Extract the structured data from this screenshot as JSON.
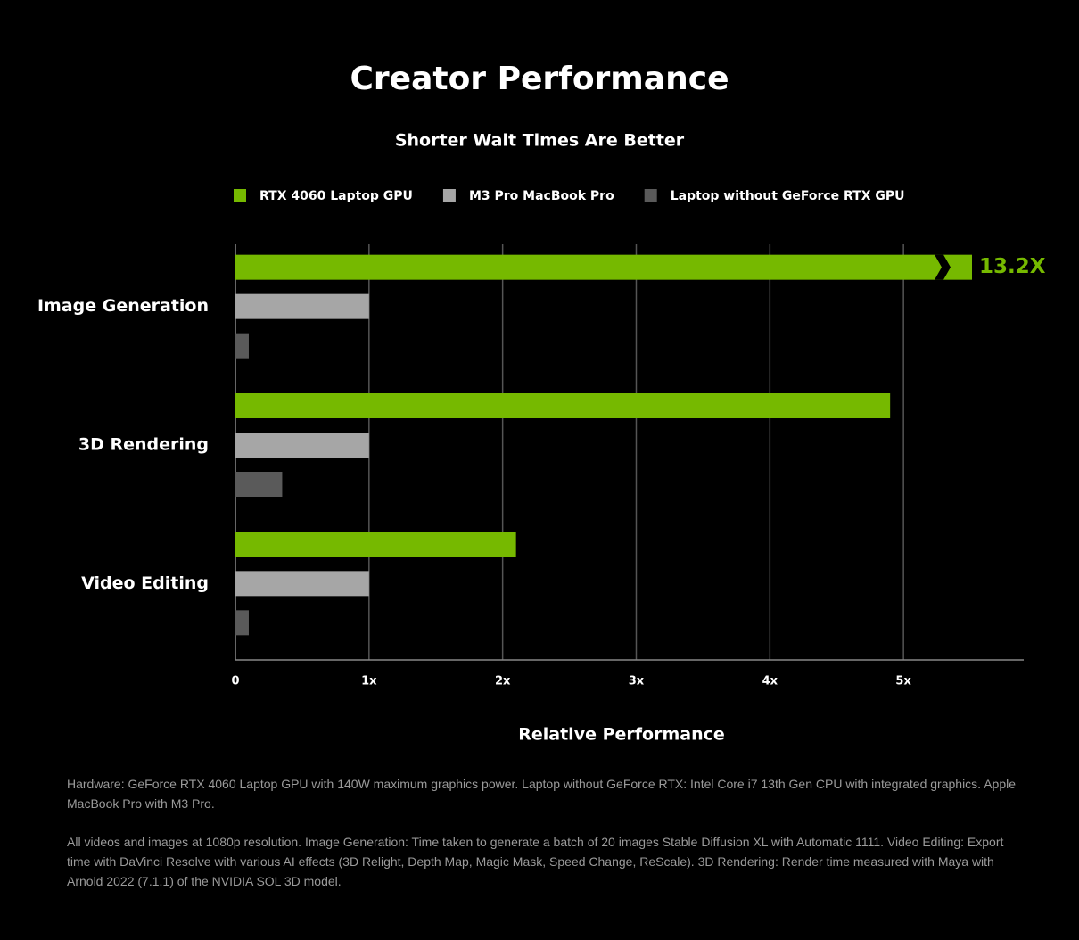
{
  "chart_data": {
    "type": "barh",
    "title": "Creator Performance",
    "subtitle": "Shorter Wait Times Are Better",
    "xlabel": "Relative Performance",
    "categories": [
      "Image Generation",
      "3D Rendering",
      "Video Editing"
    ],
    "series": [
      {
        "name": "RTX 4060 Laptop GPU",
        "color": "#76b900",
        "values": [
          13.2,
          4.9,
          2.1
        ],
        "value_labels": [
          "13.2X",
          null,
          null
        ]
      },
      {
        "name": "M3 Pro MacBook Pro",
        "color": "#a6a6a6",
        "values": [
          1,
          1,
          1
        ]
      },
      {
        "name": "Laptop without GeForce RTX GPU",
        "color": "#5a5a5a",
        "values": [
          0.1,
          0.35,
          0.1
        ]
      }
    ],
    "xlim": [
      0,
      5.9
    ],
    "xticks": [
      0,
      {
        "value": 1,
        "label": "1x"
      },
      {
        "value": 2,
        "label": "2x"
      },
      {
        "value": 3,
        "label": "3x"
      },
      {
        "value": 4,
        "label": "4x"
      },
      {
        "value": 5,
        "label": "5x"
      }
    ],
    "grid": true,
    "legend": "top",
    "footnotes": [
      "Hardware: GeForce RTX 4060 Laptop GPU with 140W maximum graphics power. Laptop without GeForce RTX: Intel Core i7 13th Gen CPU with integrated graphics. Apple MacBook Pro with M3 Pro.",
      "All videos and images at 1080p resolution. Image Generation: Time taken to generate a batch of 20 images Stable Diffusion XL with Automatic 1111. Video Editing: Export time with DaVinci Resolve with various AI effects (3D Relight, Depth Map, Magic Mask, Speed Change, ReScale). 3D Rendering: Render time measured with Maya with Arnold 2022 (7.1.1) of the NVIDIA SOL 3D model."
    ]
  }
}
